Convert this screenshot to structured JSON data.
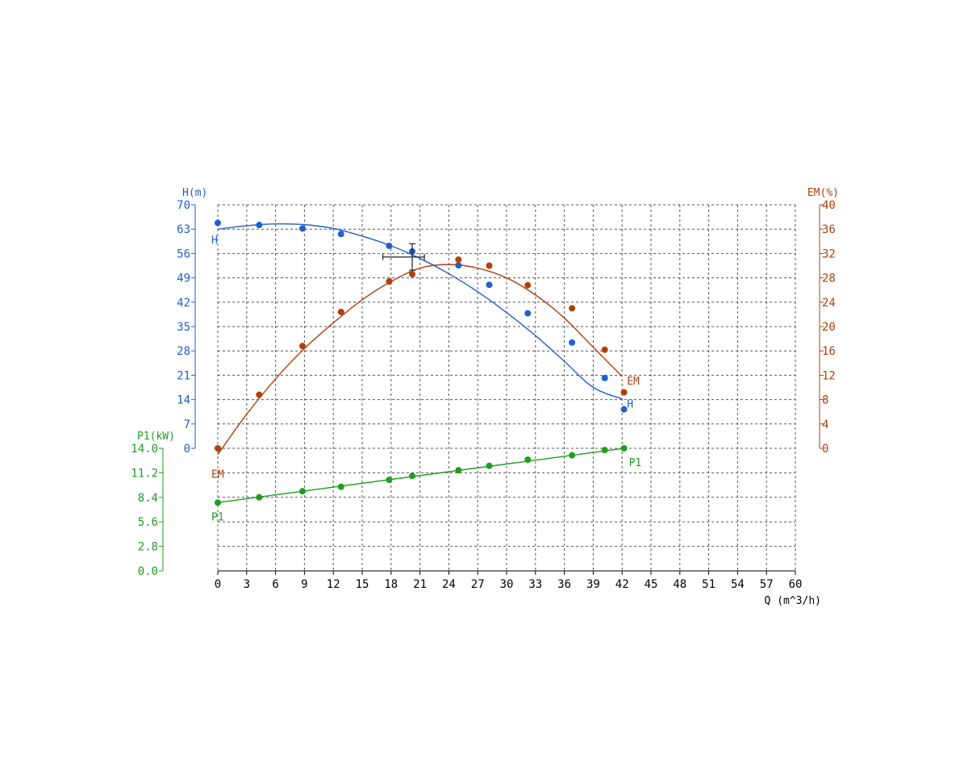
{
  "chart_data": {
    "type": "line",
    "x": {
      "label": "Q (m^3/h)",
      "range": [
        0,
        60
      ],
      "ticks": [
        "0",
        "3",
        "6",
        "9",
        "12",
        "15",
        "18",
        "21",
        "24",
        "27",
        "30",
        "33",
        "36",
        "39",
        "42",
        "45",
        "48",
        "51",
        "54",
        "57",
        "60"
      ]
    },
    "grid": true,
    "axes": {
      "H": {
        "label": "H(m)",
        "range": [
          0,
          70
        ],
        "ticks": [
          "0",
          "7",
          "14",
          "21",
          "28",
          "35",
          "42",
          "49",
          "56",
          "63",
          "70"
        ],
        "color": "#1f5fcf",
        "side": "left"
      },
      "EM": {
        "label": "EM(%)",
        "range": [
          0,
          40
        ],
        "ticks": [
          "0",
          "4",
          "8",
          "12",
          "16",
          "20",
          "24",
          "28",
          "32",
          "36",
          "40"
        ],
        "color": "#b0400a",
        "side": "right"
      },
      "P1": {
        "label": "P1(kW)",
        "range": [
          0,
          14
        ],
        "ticks": [
          "0.0",
          "2.8",
          "5.6",
          "8.4",
          "11.2",
          "14.0"
        ],
        "color": "#1e9e1e",
        "side": "left"
      }
    },
    "series": [
      {
        "name": "H",
        "axis": "H",
        "color": "#1f5fcf",
        "points": [
          [
            0,
            64.8
          ],
          [
            4.3,
            64.2
          ],
          [
            8.8,
            63.2
          ],
          [
            12.8,
            61.6
          ],
          [
            17.8,
            58.2
          ],
          [
            20.2,
            56.6
          ],
          [
            25.0,
            52.6
          ],
          [
            28.2,
            47.0
          ],
          [
            32.2,
            38.8
          ],
          [
            36.8,
            30.4
          ],
          [
            40.2,
            20.2
          ],
          [
            42.2,
            11.2
          ]
        ],
        "curve": [
          [
            0,
            63.0
          ],
          [
            3,
            64.0
          ],
          [
            6,
            64.5
          ],
          [
            9,
            64.3
          ],
          [
            12,
            63.2
          ],
          [
            15,
            61.0
          ],
          [
            18,
            58.2
          ],
          [
            21,
            54.6
          ],
          [
            24,
            50.2
          ],
          [
            27,
            45.0
          ],
          [
            30,
            39.0
          ],
          [
            33,
            32.4
          ],
          [
            36,
            25.0
          ],
          [
            39,
            17.5
          ],
          [
            42,
            14.2
          ]
        ]
      },
      {
        "name": "EM",
        "axis": "EM",
        "color": "#b0400a",
        "points": [
          [
            0,
            0
          ],
          [
            4.3,
            8.8
          ],
          [
            8.8,
            16.8
          ],
          [
            12.8,
            22.4
          ],
          [
            17.8,
            27.4
          ],
          [
            20.2,
            28.6
          ],
          [
            25.0,
            31.0
          ],
          [
            28.2,
            30.0
          ],
          [
            32.2,
            26.8
          ],
          [
            36.8,
            23.0
          ],
          [
            40.2,
            16.2
          ],
          [
            42.2,
            9.2
          ]
        ],
        "curve": [
          [
            0,
            -1.0
          ],
          [
            3,
            5.6
          ],
          [
            6,
            11.4
          ],
          [
            9,
            16.4
          ],
          [
            12,
            20.6
          ],
          [
            15,
            24.4
          ],
          [
            18,
            27.4
          ],
          [
            21,
            29.6
          ],
          [
            24,
            30.2
          ],
          [
            27,
            29.6
          ],
          [
            30,
            28.0
          ],
          [
            33,
            25.2
          ],
          [
            36,
            21.4
          ],
          [
            39,
            16.6
          ],
          [
            42,
            11.8
          ]
        ]
      },
      {
        "name": "P1",
        "axis": "P1",
        "color": "#1e9e1e",
        "points": [
          [
            0,
            7.8
          ],
          [
            4.3,
            8.4
          ],
          [
            8.8,
            9.1
          ],
          [
            12.8,
            9.6
          ],
          [
            17.8,
            10.4
          ],
          [
            20.2,
            10.85
          ],
          [
            25.0,
            11.5
          ],
          [
            28.2,
            12.0
          ],
          [
            32.2,
            12.7
          ],
          [
            36.8,
            13.2
          ],
          [
            40.2,
            13.8
          ],
          [
            42.2,
            14.0
          ]
        ],
        "curve": [
          [
            0,
            7.8
          ],
          [
            42.2,
            14.0
          ]
        ]
      }
    ],
    "duty_point": {
      "q": 20.2,
      "h": 55.0,
      "q_tol": 1.8,
      "h_tol": 3.8
    }
  }
}
